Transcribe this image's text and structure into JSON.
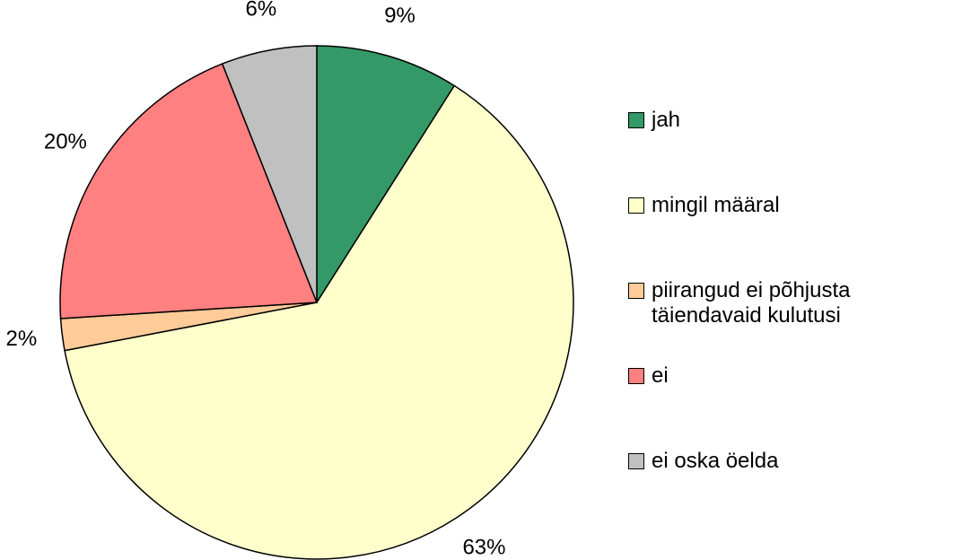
{
  "chart_data": {
    "type": "pie",
    "categories": [
      "jah",
      "mingil määral",
      "piirangud ei põhjusta täiendavaid kulutusi",
      "ei",
      "ei oska öelda"
    ],
    "values": [
      9,
      63,
      2,
      20,
      6
    ],
    "value_labels": [
      "9%",
      "63%",
      "2%",
      "20%",
      "6%"
    ],
    "colors": [
      "#339966",
      "#FFFFCC",
      "#FFCC99",
      "#FF8080",
      "#C0C0C0"
    ],
    "legend": "right"
  }
}
